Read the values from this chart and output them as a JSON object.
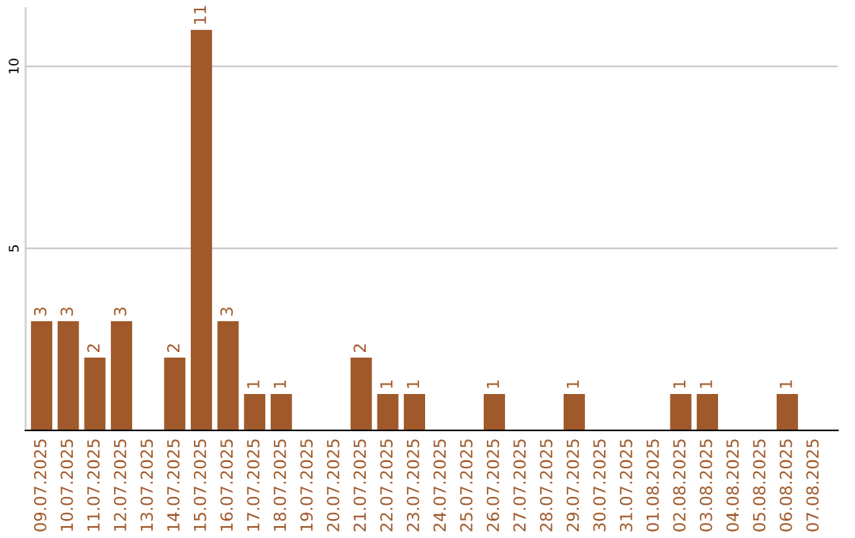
{
  "chart_data": {
    "type": "bar",
    "categories": [
      "09.07.2025",
      "10.07.2025",
      "11.07.2025",
      "12.07.2025",
      "13.07.2025",
      "14.07.2025",
      "15.07.2025",
      "16.07.2025",
      "17.07.2025",
      "18.07.2025",
      "19.07.2025",
      "20.07.2025",
      "21.07.2025",
      "22.07.2025",
      "23.07.2025",
      "24.07.2025",
      "25.07.2025",
      "26.07.2025",
      "27.07.2025",
      "28.07.2025",
      "29.07.2025",
      "30.07.2025",
      "31.07.2025",
      "01.08.2025",
      "02.08.2025",
      "03.08.2025",
      "04.08.2025",
      "05.08.2025",
      "06.08.2025",
      "07.08.2025"
    ],
    "values": [
      3,
      3,
      2,
      3,
      0,
      2,
      11,
      3,
      1,
      1,
      0,
      0,
      2,
      1,
      1,
      0,
      0,
      1,
      0,
      0,
      1,
      0,
      0,
      0,
      1,
      1,
      0,
      0,
      1,
      0
    ],
    "value_labels": [
      "3",
      "3",
      "2",
      "3",
      null,
      "2",
      "11",
      "3",
      "1",
      "1",
      null,
      null,
      "2",
      "1",
      "1",
      null,
      null,
      "1",
      null,
      null,
      "1",
      null,
      null,
      null,
      "1",
      "1",
      null,
      null,
      "1",
      null
    ],
    "color": "#a0592a",
    "ylim": [
      0,
      11.6
    ],
    "yticks": [
      5,
      10
    ],
    "grid": "y"
  }
}
